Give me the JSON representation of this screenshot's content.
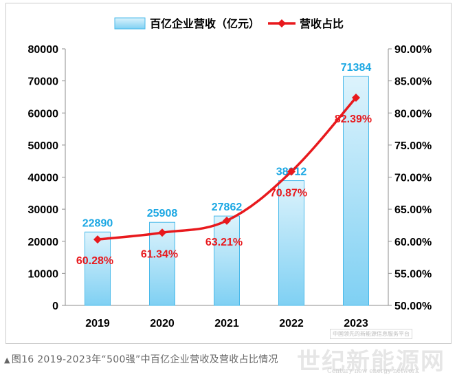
{
  "chart_data": {
    "type": "bar",
    "categories": [
      "2019",
      "2020",
      "2021",
      "2022",
      "2023"
    ],
    "series": [
      {
        "name": "百亿企业营收（亿元）",
        "type": "bar",
        "axis": "left",
        "values": [
          22890,
          25908,
          27862,
          38912,
          71384
        ],
        "labels": [
          "22890",
          "25908",
          "27862",
          "38912",
          "71384"
        ],
        "color": "#7fd0f3"
      },
      {
        "name": "营收占比",
        "type": "line",
        "axis": "right",
        "values": [
          60.28,
          61.34,
          63.21,
          70.87,
          82.39
        ],
        "labels": [
          "60.28%",
          "61.34%",
          "63.21%",
          "70.87%",
          "82.39%"
        ],
        "color": "#e8191d"
      }
    ],
    "y_left": {
      "min": 0,
      "max": 80000,
      "ticks": [
        "0",
        "10000",
        "20000",
        "30000",
        "40000",
        "50000",
        "60000",
        "70000",
        "80000"
      ]
    },
    "y_right": {
      "min": 50,
      "max": 90,
      "ticks": [
        "50.00%",
        "55.00%",
        "60.00%",
        "65.00%",
        "70.00%",
        "75.00%",
        "80.00%",
        "85.00%",
        "90.00%"
      ]
    },
    "legend_position": "top-center",
    "grid": false,
    "bar_label_color": "#1aa7e3",
    "line_label_color": "#e8191d"
  },
  "caption": {
    "text": "图16 2019-2023年“500强”中百亿企业营收及营收占比情况"
  },
  "watermark": {
    "main": "世纪新能源网",
    "sub": "Century new energy network",
    "stamp": "中国领先的新能源信息服务平台"
  }
}
